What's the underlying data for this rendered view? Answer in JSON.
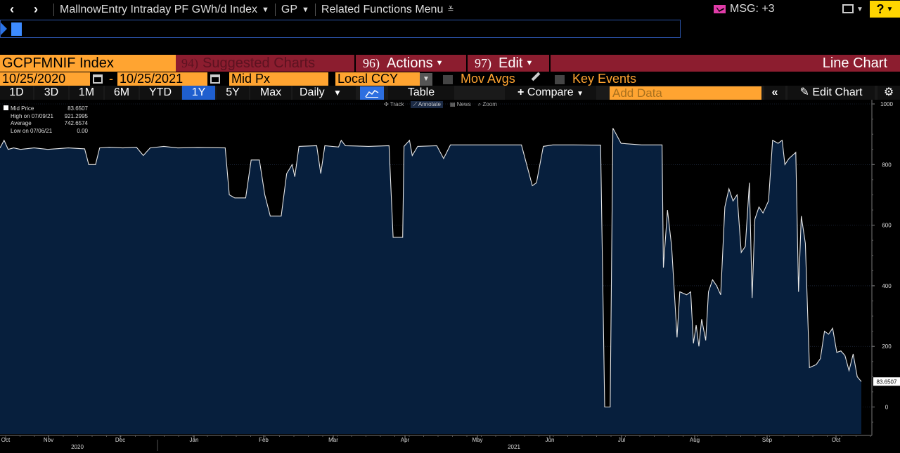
{
  "topbar": {
    "back_icon": "chevron-left-icon",
    "forward_icon": "chevron-right-icon",
    "title": "MallnowEntry Intraday PF GWh/d Index",
    "group": "GP",
    "related": "Related Functions Menu",
    "msg": "MSG: +3",
    "help": "?"
  },
  "titlebar": {
    "ticker": "GCPFMNIF Index",
    "suggested_num": "94)",
    "suggested": "Suggested Charts",
    "actions_num": "96)",
    "actions": "Actions",
    "edit_num": "97)",
    "edit": "Edit",
    "chart_type": "Line Chart"
  },
  "daterow": {
    "start": "10/25/2020",
    "dash": "-",
    "end": "10/25/2021",
    "price": "Mid Px",
    "currency": "Local CCY",
    "mov_avgs": "Mov Avgs",
    "key_events": "Key Events"
  },
  "rangerow": {
    "ranges": [
      "1D",
      "3D",
      "1M",
      "6M",
      "YTD",
      "1Y",
      "5Y",
      "Max"
    ],
    "selected": "1Y",
    "period": "Daily",
    "table": "Table",
    "compare": "Compare",
    "add_data_placeholder": "Add Data",
    "edit_chart": "Edit Chart"
  },
  "toolstrip": [
    "Track",
    "Annotate",
    "News",
    "Zoom"
  ],
  "legend": {
    "series": "Mid Price",
    "last": "83.6507",
    "high_label": "High on 07/09/21",
    "high": "921.2995",
    "avg_label": "Average",
    "avg": "742.6574",
    "low_label": "Low on 07/06/21",
    "low": "0.00"
  },
  "colors": {
    "ticker_bg": "#ffa431",
    "red_bar": "#8c1d2f",
    "active_blue": "#1f5fcf",
    "plot_fill": "#071f3d",
    "line": "#e6e6e6"
  },
  "chart_data": {
    "type": "area",
    "x_labels": [
      "Oct",
      "Nov",
      "Dec",
      "Jan",
      "Feb",
      "Mar",
      "Apr",
      "May",
      "Jun",
      "Jul",
      "Aug",
      "Sep",
      "Oct"
    ],
    "year_labels": [
      "2020",
      "2021"
    ],
    "y_ticks": [
      0,
      200,
      400,
      600,
      800,
      1000
    ],
    "ylim": [
      -90,
      1000
    ],
    "last_value_label": "83.6507",
    "series": [
      {
        "name": "Mid Price",
        "points": [
          [
            0,
            855
          ],
          [
            3,
            880
          ],
          [
            6,
            850
          ],
          [
            10,
            855
          ],
          [
            15,
            850
          ],
          [
            25,
            855
          ],
          [
            35,
            850
          ],
          [
            50,
            855
          ],
          [
            62,
            852
          ],
          [
            65,
            800
          ],
          [
            70,
            800
          ],
          [
            73,
            855
          ],
          [
            80,
            857
          ],
          [
            90,
            855
          ],
          [
            100,
            857
          ],
          [
            105,
            830
          ],
          [
            110,
            855
          ],
          [
            120,
            860
          ],
          [
            130,
            855
          ],
          [
            145,
            856
          ],
          [
            165,
            855
          ],
          [
            168,
            700
          ],
          [
            172,
            690
          ],
          [
            180,
            690
          ],
          [
            184,
            815
          ],
          [
            190,
            815
          ],
          [
            194,
            700
          ],
          [
            198,
            630
          ],
          [
            206,
            630
          ],
          [
            210,
            770
          ],
          [
            214,
            800
          ],
          [
            216,
            760
          ],
          [
            219,
            860
          ],
          [
            232,
            862
          ],
          [
            235,
            770
          ],
          [
            238,
            862
          ],
          [
            248,
            858
          ],
          [
            250,
            880
          ],
          [
            253,
            862
          ],
          [
            270,
            860
          ],
          [
            285,
            862
          ],
          [
            288,
            560
          ],
          [
            295,
            560
          ],
          [
            296,
            860
          ],
          [
            300,
            880
          ],
          [
            302,
            830
          ],
          [
            306,
            860
          ],
          [
            320,
            862
          ],
          [
            325,
            820
          ],
          [
            330,
            865
          ],
          [
            345,
            865
          ],
          [
            365,
            865
          ],
          [
            382,
            865
          ],
          [
            390,
            730
          ],
          [
            393,
            740
          ],
          [
            398,
            860
          ],
          [
            405,
            865
          ],
          [
            420,
            865
          ],
          [
            440,
            864
          ],
          [
            443,
            0
          ],
          [
            447,
            0
          ],
          [
            449,
            920
          ],
          [
            455,
            870
          ],
          [
            470,
            865
          ],
          [
            485,
            865
          ],
          [
            486,
            460
          ],
          [
            489,
            650
          ],
          [
            492,
            530
          ],
          [
            496,
            230
          ],
          [
            498,
            380
          ],
          [
            503,
            370
          ],
          [
            506,
            380
          ],
          [
            508,
            210
          ],
          [
            510,
            270
          ],
          [
            512,
            200
          ],
          [
            514,
            290
          ],
          [
            517,
            220
          ],
          [
            519,
            380
          ],
          [
            522,
            420
          ],
          [
            525,
            400
          ],
          [
            528,
            370
          ],
          [
            531,
            660
          ],
          [
            534,
            720
          ],
          [
            537,
            680
          ],
          [
            540,
            700
          ],
          [
            543,
            510
          ],
          [
            546,
            530
          ],
          [
            549,
            740
          ],
          [
            551,
            360
          ],
          [
            553,
            620
          ],
          [
            556,
            660
          ],
          [
            559,
            640
          ],
          [
            563,
            680
          ],
          [
            566,
            880
          ],
          [
            570,
            870
          ],
          [
            573,
            880
          ],
          [
            575,
            800
          ],
          [
            578,
            820
          ],
          [
            583,
            840
          ],
          [
            585,
            380
          ],
          [
            587,
            630
          ],
          [
            590,
            540
          ],
          [
            593,
            130
          ],
          [
            598,
            140
          ],
          [
            601,
            160
          ],
          [
            604,
            250
          ],
          [
            607,
            240
          ],
          [
            610,
            260
          ],
          [
            613,
            180
          ],
          [
            616,
            185
          ],
          [
            619,
            170
          ],
          [
            622,
            120
          ],
          [
            625,
            175
          ],
          [
            628,
            100
          ],
          [
            631,
            84
          ]
        ]
      }
    ]
  }
}
